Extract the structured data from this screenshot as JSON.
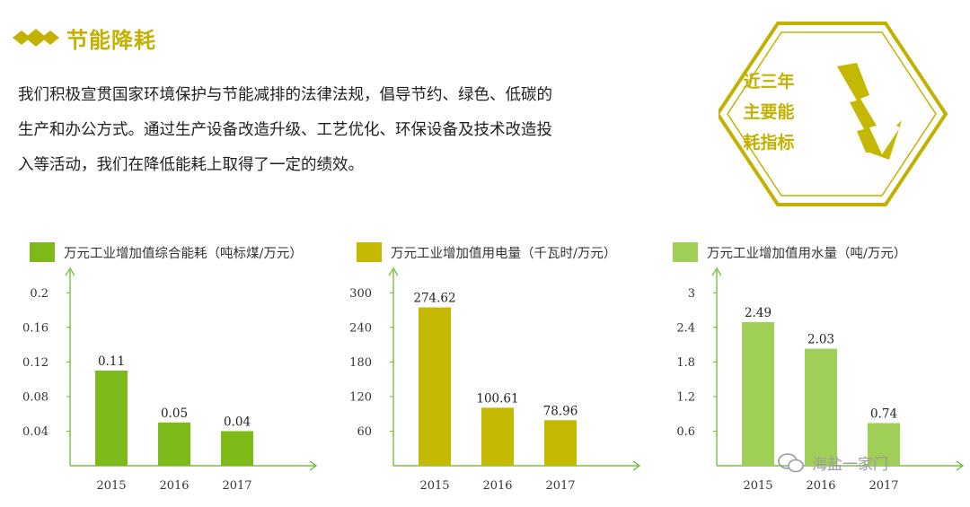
{
  "header": {
    "title": "节能降耗"
  },
  "intro": {
    "lines": [
      "我们积极宣贯国家环境保护与节能减排的法律法规，倡导节约、绿色、低碳的",
      "生产和办公方式。通过生产设备改造升级、工艺优化、环保设备及技术改造投",
      "入等活动，我们在降低能耗上取得了一定的绩效。"
    ]
  },
  "badge": {
    "lines": [
      "近三年",
      "主要能",
      "耗指标"
    ]
  },
  "colors": {
    "accent": "#c2b200",
    "chart1": "#7db918",
    "chart2": "#c5b800",
    "chart3": "#a0cf58",
    "axis": "#7ac043"
  },
  "watermark": {
    "text": "海盐一家门"
  },
  "chart_data": [
    {
      "type": "bar",
      "legend": "万元工业增加值综合能耗（吨标煤/万元）",
      "categories": [
        "2015",
        "2016",
        "2017"
      ],
      "values": [
        0.11,
        0.05,
        0.04
      ],
      "value_labels": [
        "0.11",
        "0.05",
        "0.04"
      ],
      "yticks": [
        "0.04",
        "0.08",
        "0.12",
        "0.16",
        "0.2"
      ],
      "ylim": [
        0,
        0.22
      ],
      "color": "#7db918"
    },
    {
      "type": "bar",
      "legend": "万元工业增加值用电量（千瓦时/万元）",
      "categories": [
        "2015",
        "2016",
        "2017"
      ],
      "values": [
        274.62,
        100.61,
        78.96
      ],
      "value_labels": [
        "274.62",
        "100.61",
        "78.96"
      ],
      "yticks": [
        "60",
        "120",
        "180",
        "240",
        "300"
      ],
      "ylim": [
        0,
        330
      ],
      "color": "#c5b800"
    },
    {
      "type": "bar",
      "legend": "万元工业增加值用水量（吨/万元）",
      "categories": [
        "2015",
        "2016",
        "2017"
      ],
      "values": [
        2.49,
        2.03,
        0.74
      ],
      "value_labels": [
        "2.49",
        "2.03",
        "0.74"
      ],
      "yticks": [
        "0.6",
        "1.2",
        "1.8",
        "2.4",
        "3"
      ],
      "ylim": [
        0,
        3.3
      ],
      "color": "#a0cf58"
    }
  ]
}
